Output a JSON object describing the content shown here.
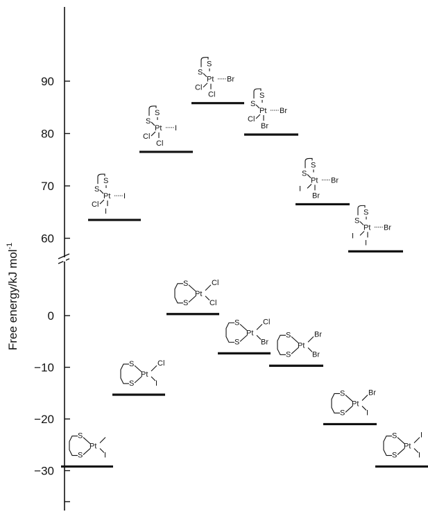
{
  "chart_data": {
    "type": "energy-level-diagram",
    "ylabel": "Free energy/kJ mol",
    "ylabel_superscript": "-1",
    "upper_ticks": [
      "90",
      "80",
      "70",
      "60"
    ],
    "lower_ticks": [
      "0",
      "−10",
      "−20",
      "−30"
    ],
    "upper_levels": [
      {
        "complex": "PtCl(I)(thioether) five-coordinate",
        "energy": 63.5,
        "labels": {
          "top": "S",
          "left": "S",
          "center": "Pt",
          "right": "I",
          "bl": "Cl",
          "bottom": "I"
        }
      },
      {
        "complex": "PtCl2(I)(thioether) five-coordinate",
        "energy": 76.5,
        "labels": {
          "top": "S",
          "left": "S",
          "center": "Pt",
          "right": "I",
          "bl": "Cl",
          "bottom": "Cl"
        }
      },
      {
        "complex": "PtCl2(Br)(thioether) five-coordinate",
        "energy": 85.8,
        "labels": {
          "top": "S",
          "left": "S",
          "center": "Pt",
          "right": "Br",
          "bl": "Cl",
          "bottom": "Cl"
        }
      },
      {
        "complex": "PtCl(Br)2(thioether) five-coordinate",
        "energy": 79.8,
        "labels": {
          "top": "S",
          "left": "S",
          "center": "Pt",
          "right": "Br",
          "bl": "Cl",
          "bottom": "Br"
        }
      },
      {
        "complex": "PtI(Br)2(thioether) five-coordinate",
        "energy": 66.5,
        "labels": {
          "top": "S",
          "left": "S",
          "center": "Pt",
          "right": "Br",
          "bl": "I",
          "bottom": "Br"
        }
      },
      {
        "complex": "PtI2(Br)(thioether) five-coordinate",
        "energy": 57.5,
        "labels": {
          "top": "S",
          "left": "S",
          "center": "Pt",
          "right": "Br",
          "bl": "I",
          "bottom": "I"
        }
      }
    ],
    "lower_levels": [
      {
        "complex": "PtI2(dithiane)",
        "energy": -29.2,
        "labels": {
          "s1": "S",
          "s2": "S",
          "center": "Pt",
          "x1": "",
          "x2": "I"
        }
      },
      {
        "complex": "PtCl(I)(dithiane)",
        "energy": -15.3,
        "labels": {
          "s1": "S",
          "s2": "S",
          "center": "Pt",
          "x1": "Cl",
          "x2": "I"
        }
      },
      {
        "complex": "PtCl2(dithiane)",
        "energy": 0.3,
        "labels": {
          "s1": "S",
          "s2": "S",
          "center": "Pt",
          "x1": "Cl",
          "x2": "Cl"
        }
      },
      {
        "complex": "PtCl(Br)(dithiane)",
        "energy": -7.3,
        "labels": {
          "s1": "S",
          "s2": "S",
          "center": "Pt",
          "x1": "Cl",
          "x2": "Br"
        }
      },
      {
        "complex": "PtBr2(dithiane)",
        "energy": -9.7,
        "labels": {
          "s1": "S",
          "s2": "S",
          "center": "Pt",
          "x1": "Br",
          "x2": "Br"
        }
      },
      {
        "complex": "PtBr(I)(dithiane)",
        "energy": -21.0,
        "labels": {
          "s1": "S",
          "s2": "S",
          "center": "Pt",
          "x1": "Br",
          "x2": "I"
        }
      },
      {
        "complex": "PtI2(dithiane)",
        "energy": -29.2,
        "labels": {
          "s1": "S",
          "s2": "S",
          "center": "Pt",
          "x1": "I",
          "x2": "I"
        }
      }
    ]
  }
}
